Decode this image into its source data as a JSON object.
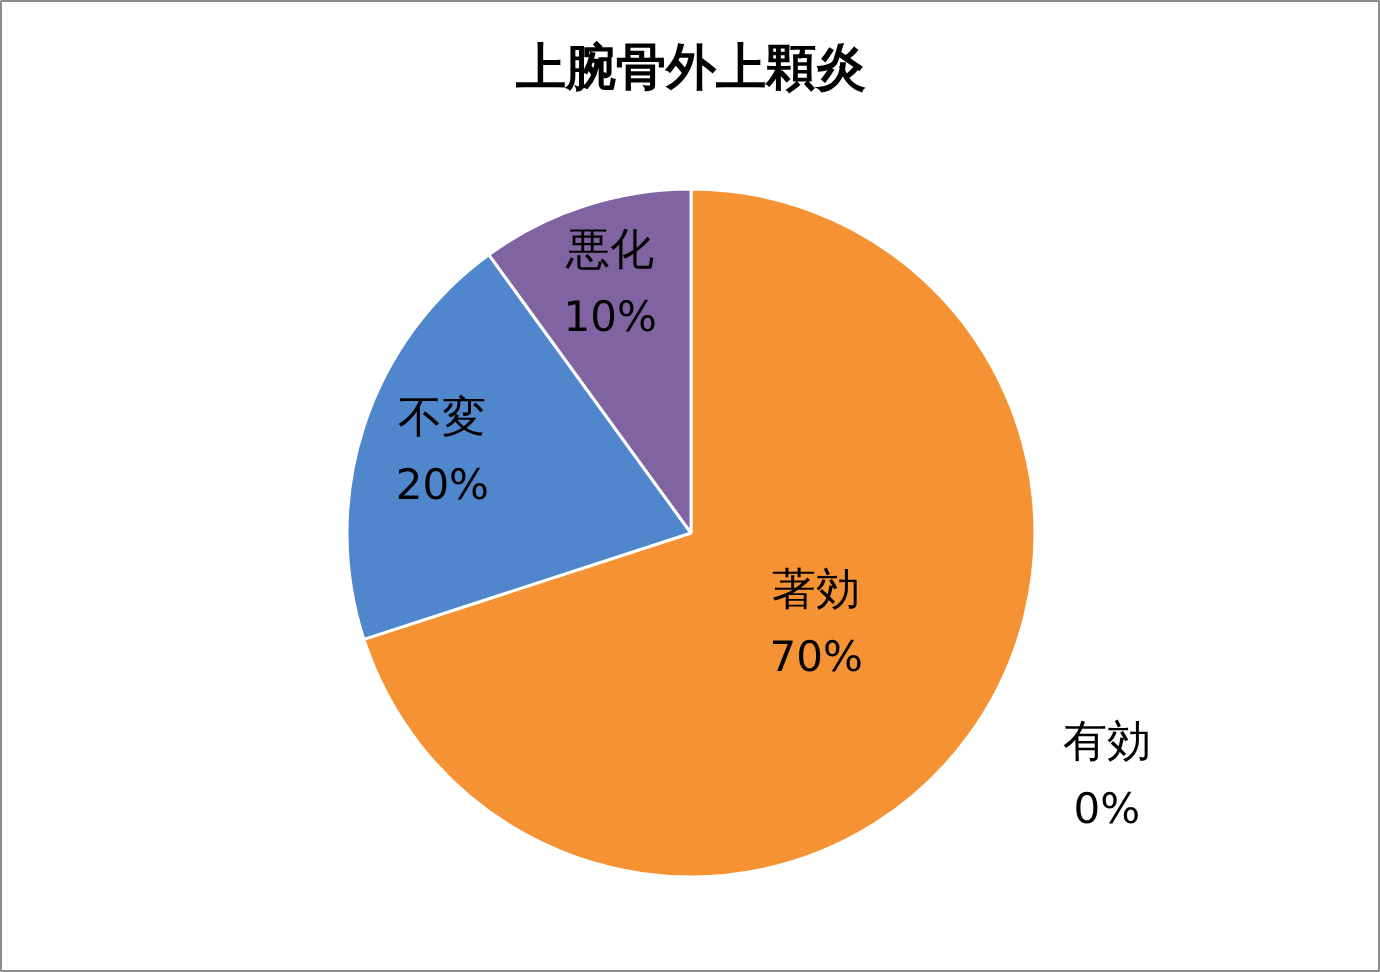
{
  "chart_data": {
    "type": "pie",
    "title": "上腕骨外上顆炎",
    "categories": [
      "著効",
      "有効",
      "不変",
      "悪化"
    ],
    "values": [
      70,
      0,
      20,
      10
    ],
    "colors": [
      "#f59233",
      "#9bbb59",
      "#4f86cc",
      "#8064a2"
    ],
    "value_labels": [
      "70%",
      "0%",
      "20%",
      "10%"
    ]
  }
}
